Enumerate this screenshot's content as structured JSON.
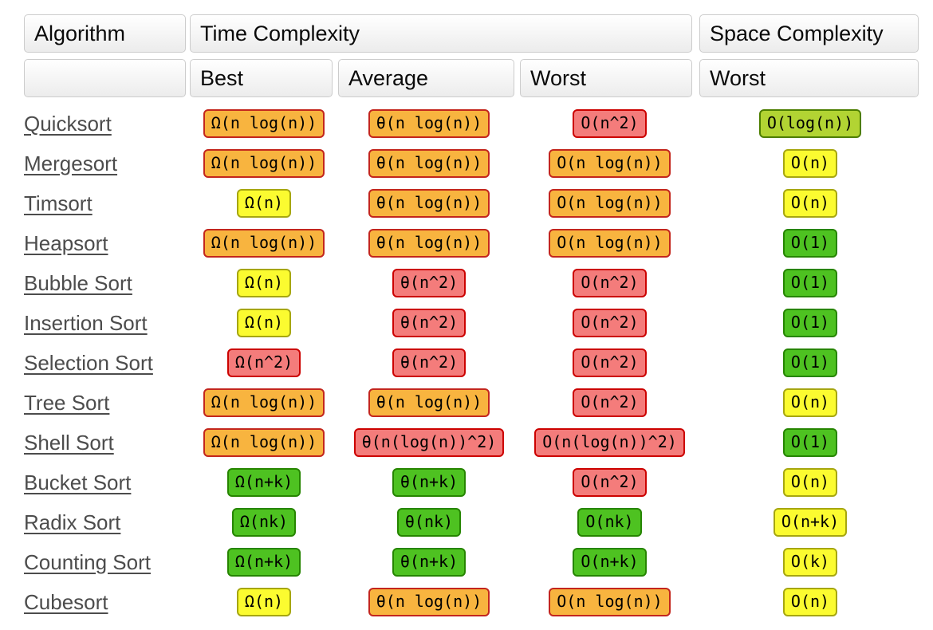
{
  "header": {
    "algorithm": "Algorithm",
    "time_complexity": "Time Complexity",
    "space_complexity": "Space Complexity",
    "sub_best": "Best",
    "sub_average": "Average",
    "sub_worst_time": "Worst",
    "sub_worst_space": "Worst"
  },
  "colors": {
    "link": "#4c4c4c",
    "badge_tones": {
      "orange": {
        "fill": "#F8B43F",
        "border": "#C3261D"
      },
      "red": {
        "fill": "#F47C7B",
        "border": "#CC0200"
      },
      "yellow": {
        "fill": "#FBFB30",
        "border": "#A6A610"
      },
      "green": {
        "fill": "#4EC221",
        "border": "#268500"
      },
      "yellowgreen": {
        "fill": "#B2D433",
        "border": "#4D7E00"
      }
    }
  },
  "rows": [
    {
      "name": "Quicksort",
      "best": {
        "text": "Ω(n log(n))",
        "tone": "orange"
      },
      "average": {
        "text": "θ(n log(n))",
        "tone": "orange"
      },
      "worst": {
        "text": "O(n^2)",
        "tone": "red"
      },
      "space": {
        "text": "O(log(n))",
        "tone": "yellowgreen"
      }
    },
    {
      "name": "Mergesort",
      "best": {
        "text": "Ω(n log(n))",
        "tone": "orange"
      },
      "average": {
        "text": "θ(n log(n))",
        "tone": "orange"
      },
      "worst": {
        "text": "O(n log(n))",
        "tone": "orange"
      },
      "space": {
        "text": "O(n)",
        "tone": "yellow"
      }
    },
    {
      "name": "Timsort",
      "best": {
        "text": "Ω(n)",
        "tone": "yellow"
      },
      "average": {
        "text": "θ(n log(n))",
        "tone": "orange"
      },
      "worst": {
        "text": "O(n log(n))",
        "tone": "orange"
      },
      "space": {
        "text": "O(n)",
        "tone": "yellow"
      }
    },
    {
      "name": "Heapsort",
      "best": {
        "text": "Ω(n log(n))",
        "tone": "orange"
      },
      "average": {
        "text": "θ(n log(n))",
        "tone": "orange"
      },
      "worst": {
        "text": "O(n log(n))",
        "tone": "orange"
      },
      "space": {
        "text": "O(1)",
        "tone": "green"
      }
    },
    {
      "name": "Bubble Sort",
      "best": {
        "text": "Ω(n)",
        "tone": "yellow"
      },
      "average": {
        "text": "θ(n^2)",
        "tone": "red"
      },
      "worst": {
        "text": "O(n^2)",
        "tone": "red"
      },
      "space": {
        "text": "O(1)",
        "tone": "green"
      }
    },
    {
      "name": "Insertion Sort",
      "best": {
        "text": "Ω(n)",
        "tone": "yellow"
      },
      "average": {
        "text": "θ(n^2)",
        "tone": "red"
      },
      "worst": {
        "text": "O(n^2)",
        "tone": "red"
      },
      "space": {
        "text": "O(1)",
        "tone": "green"
      }
    },
    {
      "name": "Selection Sort",
      "best": {
        "text": "Ω(n^2)",
        "tone": "red"
      },
      "average": {
        "text": "θ(n^2)",
        "tone": "red"
      },
      "worst": {
        "text": "O(n^2)",
        "tone": "red"
      },
      "space": {
        "text": "O(1)",
        "tone": "green"
      }
    },
    {
      "name": "Tree Sort",
      "best": {
        "text": "Ω(n log(n))",
        "tone": "orange"
      },
      "average": {
        "text": "θ(n log(n))",
        "tone": "orange"
      },
      "worst": {
        "text": "O(n^2)",
        "tone": "red"
      },
      "space": {
        "text": "O(n)",
        "tone": "yellow"
      }
    },
    {
      "name": "Shell Sort",
      "best": {
        "text": "Ω(n log(n))",
        "tone": "orange"
      },
      "average": {
        "text": "θ(n(log(n))^2)",
        "tone": "red"
      },
      "worst": {
        "text": "O(n(log(n))^2)",
        "tone": "red"
      },
      "space": {
        "text": "O(1)",
        "tone": "green"
      }
    },
    {
      "name": "Bucket Sort",
      "best": {
        "text": "Ω(n+k)",
        "tone": "green"
      },
      "average": {
        "text": "θ(n+k)",
        "tone": "green"
      },
      "worst": {
        "text": "O(n^2)",
        "tone": "red"
      },
      "space": {
        "text": "O(n)",
        "tone": "yellow"
      }
    },
    {
      "name": "Radix Sort",
      "best": {
        "text": "Ω(nk)",
        "tone": "green"
      },
      "average": {
        "text": "θ(nk)",
        "tone": "green"
      },
      "worst": {
        "text": "O(nk)",
        "tone": "green"
      },
      "space": {
        "text": "O(n+k)",
        "tone": "yellow"
      }
    },
    {
      "name": "Counting Sort",
      "best": {
        "text": "Ω(n+k)",
        "tone": "green"
      },
      "average": {
        "text": "θ(n+k)",
        "tone": "green"
      },
      "worst": {
        "text": "O(n+k)",
        "tone": "green"
      },
      "space": {
        "text": "O(k)",
        "tone": "yellow"
      }
    },
    {
      "name": "Cubesort",
      "best": {
        "text": "Ω(n)",
        "tone": "yellow"
      },
      "average": {
        "text": "θ(n log(n))",
        "tone": "orange"
      },
      "worst": {
        "text": "O(n log(n))",
        "tone": "orange"
      },
      "space": {
        "text": "O(n)",
        "tone": "yellow"
      }
    }
  ]
}
